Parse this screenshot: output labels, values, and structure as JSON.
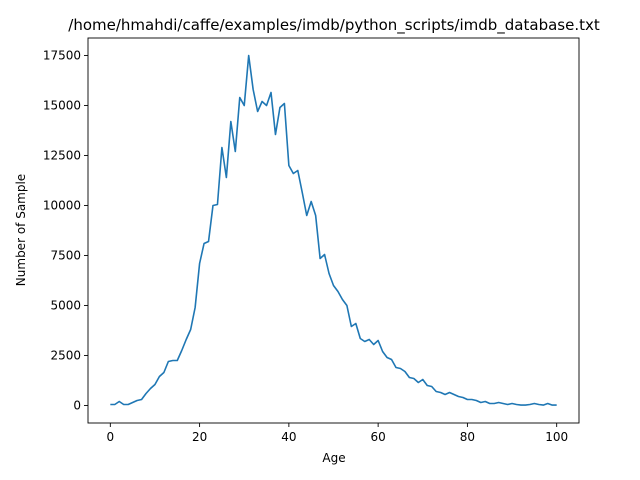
{
  "chart_data": {
    "type": "line",
    "title": "/home/hmahdi/caffe/examples/imdb/python_scripts/imdb_database.txt",
    "xlabel": "Age",
    "ylabel": "Number of Sample",
    "xlim": [
      -5,
      105
    ],
    "ylim": [
      -875,
      18375
    ],
    "x_ticks": [
      0,
      20,
      40,
      60,
      80,
      100
    ],
    "y_ticks": [
      0,
      2500,
      5000,
      7500,
      10000,
      12500,
      15000,
      17500
    ],
    "x_tick_labels": [
      "0",
      "20",
      "40",
      "60",
      "80",
      "100"
    ],
    "y_tick_labels": [
      "0",
      "2500",
      "5000",
      "7500",
      "10000",
      "12500",
      "15000",
      "17500"
    ],
    "grid": false,
    "legend": false,
    "line_color": "#1f77b4",
    "series": [
      {
        "x": [
          0,
          1,
          2,
          3,
          4,
          5,
          6,
          7,
          8,
          9,
          10,
          11,
          12,
          13,
          14,
          15,
          16,
          17,
          18,
          19,
          20,
          21,
          22,
          23,
          24,
          25,
          26,
          27,
          28,
          29,
          30,
          31,
          32,
          33,
          34,
          35,
          36,
          37,
          38,
          39,
          40,
          41,
          42,
          43,
          44,
          45,
          46,
          47,
          48,
          49,
          50,
          51,
          52,
          53,
          54,
          55,
          56,
          57,
          58,
          59,
          60,
          61,
          62,
          63,
          64,
          65,
          66,
          67,
          68,
          69,
          70,
          71,
          72,
          73,
          74,
          75,
          76,
          77,
          78,
          79,
          80,
          81,
          82,
          83,
          84,
          85,
          86,
          87,
          88,
          89,
          90,
          91,
          92,
          93,
          94,
          95,
          96,
          97,
          98,
          99,
          100
        ],
        "values": [
          50,
          50,
          200,
          50,
          50,
          150,
          250,
          300,
          600,
          850,
          1050,
          1450,
          1650,
          2200,
          2250,
          2250,
          2750,
          3300,
          3800,
          4900,
          7100,
          8100,
          8200,
          10000,
          10050,
          12900,
          11400,
          14200,
          12700,
          15400,
          15000,
          17500,
          15800,
          14700,
          15200,
          15000,
          15650,
          13550,
          14900,
          15100,
          12000,
          11600,
          11750,
          10650,
          9500,
          10200,
          9500,
          7350,
          7550,
          6600,
          6000,
          5700,
          5300,
          5000,
          3950,
          4100,
          3350,
          3200,
          3300,
          3050,
          3250,
          2700,
          2400,
          2300,
          1900,
          1850,
          1700,
          1400,
          1350,
          1150,
          1300,
          1000,
          950,
          700,
          650,
          550,
          650,
          550,
          450,
          400,
          300,
          300,
          250,
          150,
          200,
          100,
          100,
          150,
          100,
          50,
          100,
          50,
          20,
          20,
          50,
          100,
          50,
          20,
          100,
          20,
          20
        ]
      }
    ]
  }
}
